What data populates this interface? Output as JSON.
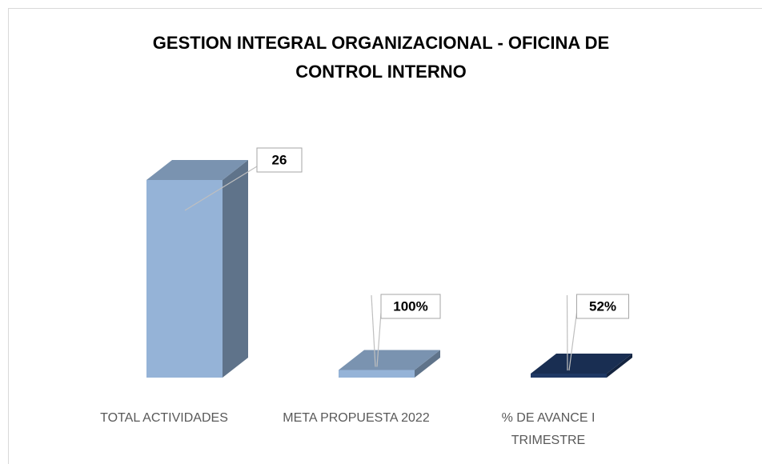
{
  "chart_data": {
    "type": "bar3d",
    "title": "GESTION INTEGRAL ORGANIZACIONAL - OFICINA DE CONTROL INTERNO",
    "categories": [
      "TOTAL ACTIVIDADES",
      "META PROPUESTA 2022",
      "% DE AVANCE I TRIMESTRE"
    ],
    "values": [
      26,
      1,
      0.52
    ],
    "value_labels": [
      "26",
      "100%",
      "52%"
    ],
    "colors": [
      "#95b3d7",
      "#95b3d7",
      "#1f3864"
    ]
  }
}
